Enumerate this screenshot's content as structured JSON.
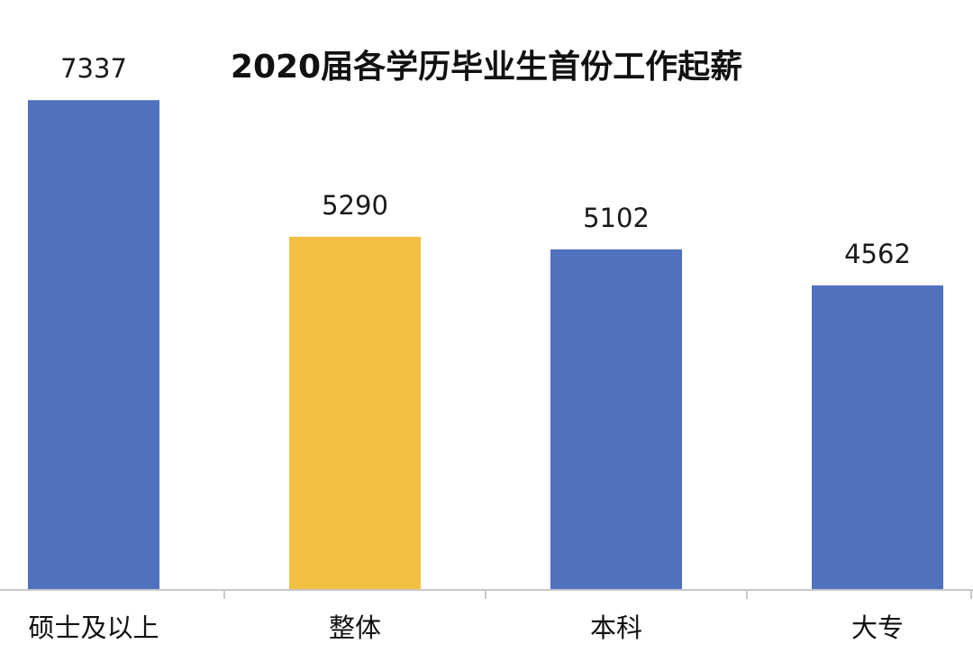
{
  "chart_data": {
    "type": "bar",
    "title": "2020届各学历毕业生首份工作起薪",
    "categories": [
      "硕士及以上",
      "整体",
      "本科",
      "大专"
    ],
    "values": [
      7337,
      5290,
      5102,
      4562
    ],
    "value_labels": [
      "7337",
      "5290",
      "5102",
      "4562"
    ],
    "bar_colors": [
      "#4f71be",
      "#f3c043",
      "#4f71be",
      "#4f71be"
    ],
    "xlabel": "",
    "ylabel": "",
    "ylim": [
      0,
      8500
    ],
    "grid": false,
    "legend": "none"
  }
}
